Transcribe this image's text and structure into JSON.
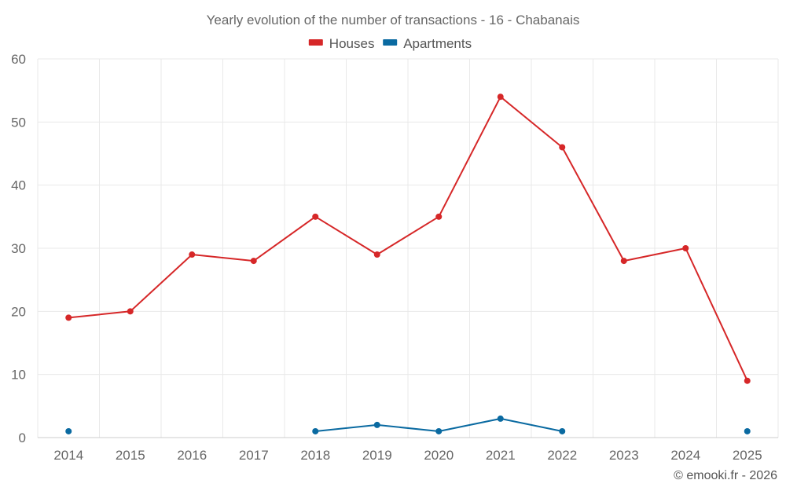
{
  "chart_data": {
    "type": "line",
    "title": "Yearly evolution of the number of transactions - 16 - Chabanais",
    "x": [
      "2014",
      "2015",
      "2016",
      "2017",
      "2018",
      "2019",
      "2020",
      "2021",
      "2022",
      "2023",
      "2024",
      "2025"
    ],
    "ylim": [
      0,
      60
    ],
    "yticks": [
      0,
      10,
      20,
      30,
      40,
      50,
      60
    ],
    "grid": true,
    "legend_position": "top-center",
    "series": [
      {
        "name": "Houses",
        "color": "#d62728",
        "values": [
          19,
          20,
          29,
          28,
          35,
          29,
          35,
          54,
          46,
          28,
          30,
          9
        ]
      },
      {
        "name": "Apartments",
        "color": "#0a6aa1",
        "values": [
          1,
          null,
          null,
          null,
          1,
          2,
          1,
          3,
          1,
          null,
          null,
          1
        ]
      }
    ]
  },
  "credit": "© emooki.fr - 2026"
}
